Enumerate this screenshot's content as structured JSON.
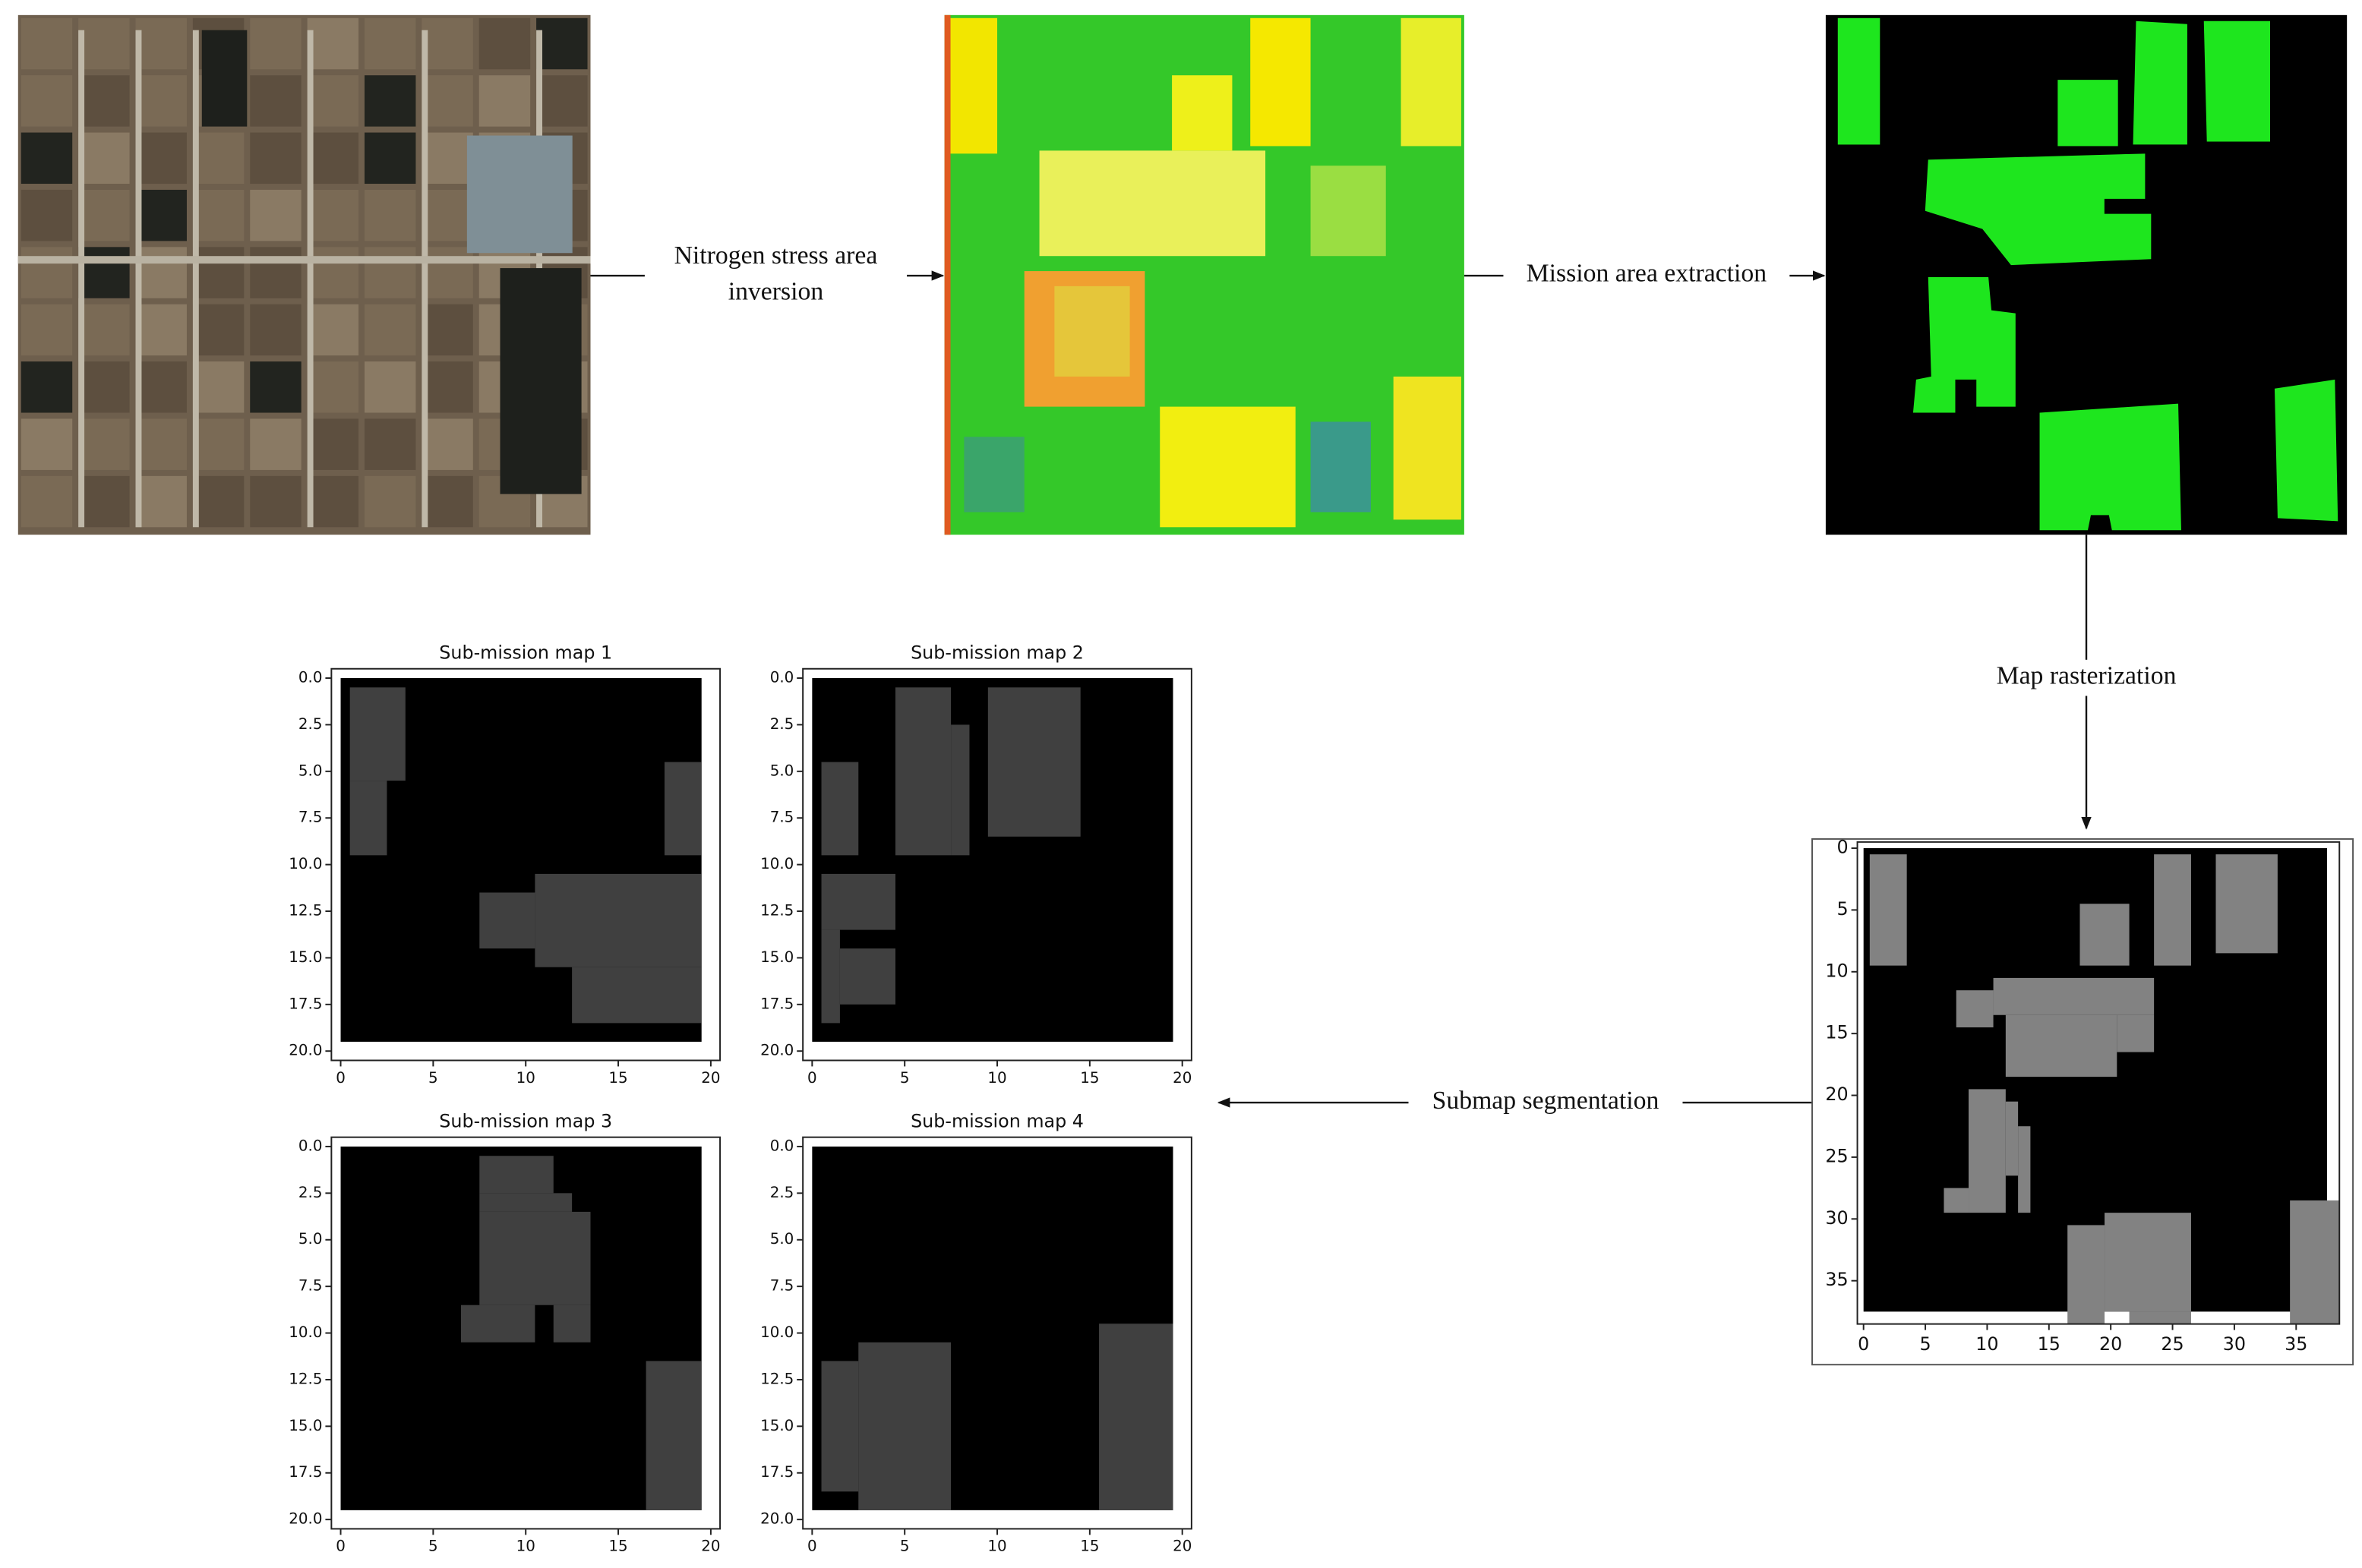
{
  "steps": {
    "inversion": [
      "Nitrogen stress area",
      "inversion"
    ],
    "extraction": "Mission area extraction",
    "rasterization": "Map rasterization",
    "segmentation": "Submap segmentation"
  },
  "rasterized_map": {
    "xlim": [
      -0.5,
      38.5
    ],
    "ylim": [
      -0.5,
      38.5
    ],
    "xticks": [
      0,
      5,
      10,
      15,
      20,
      25,
      30,
      35
    ],
    "yticks": [
      0,
      5,
      10,
      15,
      20,
      25,
      30,
      35
    ]
  },
  "submaps": [
    {
      "title": "Sub-mission map 1",
      "xlim": [
        -0.5,
        20.5
      ],
      "ylim": [
        -0.5,
        20.5
      ],
      "xticks": [
        0,
        5,
        10,
        15,
        20
      ],
      "yticks": [
        {
          "value": 0,
          "label": "0.0"
        },
        {
          "value": 2.5,
          "label": "2.5"
        },
        {
          "value": 5,
          "label": "5.0"
        },
        {
          "value": 7.5,
          "label": "7.5"
        },
        {
          "value": 10,
          "label": "10.0"
        },
        {
          "value": 12.5,
          "label": "12.5"
        },
        {
          "value": 15,
          "label": "15.0"
        },
        {
          "value": 17.5,
          "label": "17.5"
        },
        {
          "value": 20,
          "label": "20.0"
        }
      ]
    },
    {
      "title": "Sub-mission map 2",
      "xlim": [
        -0.5,
        20.5
      ],
      "ylim": [
        -0.5,
        20.5
      ],
      "xticks": [
        0,
        5,
        10,
        15,
        20
      ],
      "yticks": [
        {
          "value": 0,
          "label": "0.0"
        },
        {
          "value": 2.5,
          "label": "2.5"
        },
        {
          "value": 5,
          "label": "5.0"
        },
        {
          "value": 7.5,
          "label": "7.5"
        },
        {
          "value": 10,
          "label": "10.0"
        },
        {
          "value": 12.5,
          "label": "12.5"
        },
        {
          "value": 15,
          "label": "15.0"
        },
        {
          "value": 17.5,
          "label": "17.5"
        },
        {
          "value": 20,
          "label": "20.0"
        }
      ]
    },
    {
      "title": "Sub-mission map 3",
      "xlim": [
        -0.5,
        20.5
      ],
      "ylim": [
        -0.5,
        20.5
      ],
      "xticks": [
        0,
        5,
        10,
        15,
        20
      ],
      "yticks": [
        {
          "value": 0,
          "label": "0.0"
        },
        {
          "value": 2.5,
          "label": "2.5"
        },
        {
          "value": 5,
          "label": "5.0"
        },
        {
          "value": 7.5,
          "label": "7.5"
        },
        {
          "value": 10,
          "label": "10.0"
        },
        {
          "value": 12.5,
          "label": "12.5"
        },
        {
          "value": 15,
          "label": "15.0"
        },
        {
          "value": 17.5,
          "label": "17.5"
        },
        {
          "value": 20,
          "label": "20.0"
        }
      ]
    },
    {
      "title": "Sub-mission map 4",
      "xlim": [
        -0.5,
        20.5
      ],
      "ylim": [
        -0.5,
        20.5
      ],
      "xticks": [
        0,
        5,
        10,
        15,
        20
      ],
      "yticks": [
        {
          "value": 0,
          "label": "0.0"
        },
        {
          "value": 2.5,
          "label": "2.5"
        },
        {
          "value": 5,
          "label": "5.0"
        },
        {
          "value": 7.5,
          "label": "7.5"
        },
        {
          "value": 10,
          "label": "10.0"
        },
        {
          "value": 12.5,
          "label": "12.5"
        },
        {
          "value": 15,
          "label": "15.0"
        },
        {
          "value": 17.5,
          "label": "17.5"
        },
        {
          "value": 20,
          "label": "20.0"
        }
      ]
    }
  ]
}
